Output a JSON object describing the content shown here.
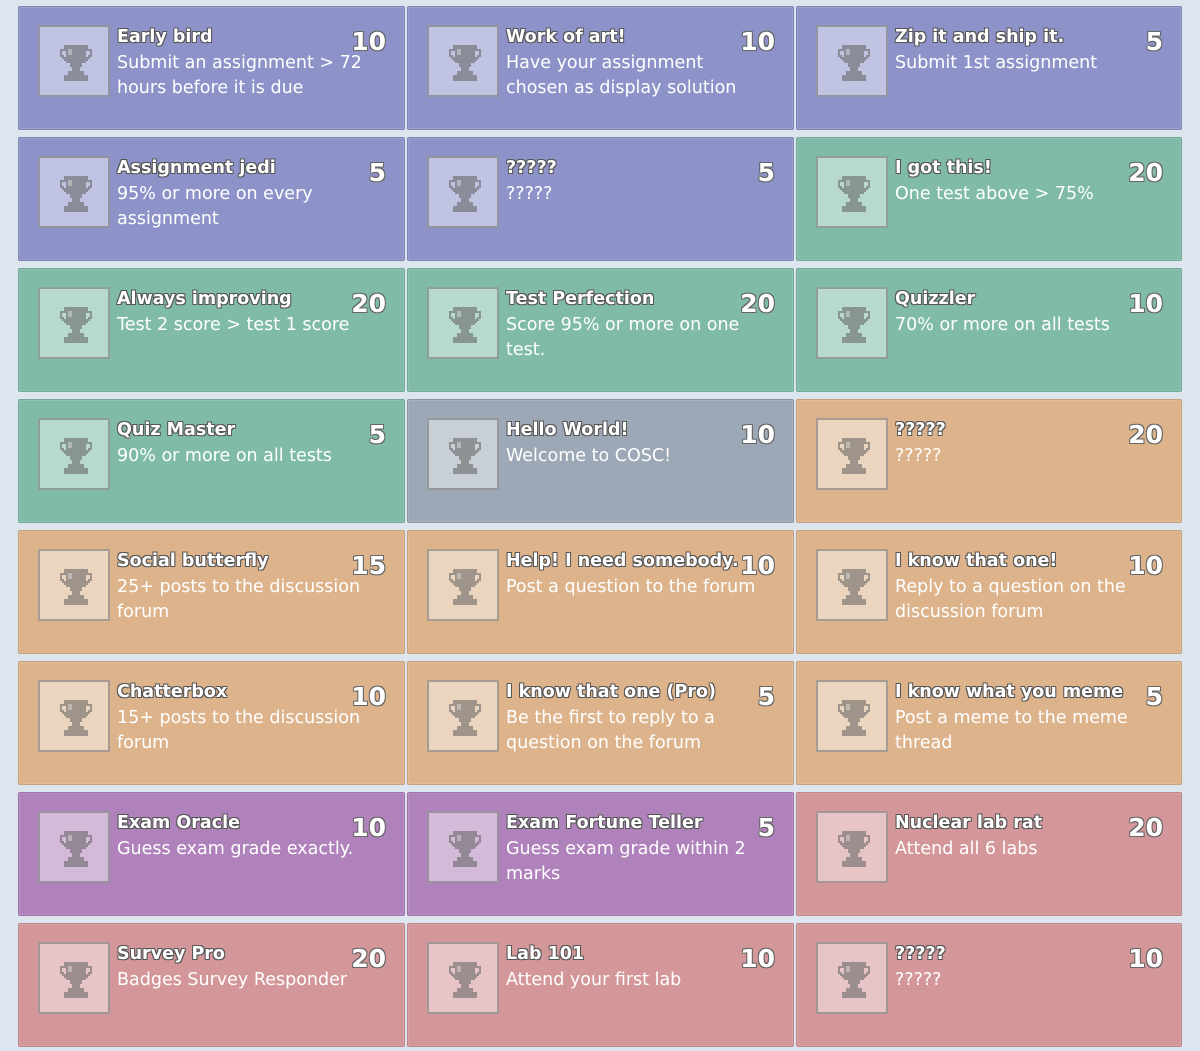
{
  "colors": {
    "assignment": "#8d93c8",
    "test": "#7fbba8",
    "welcome": "#9ca8b5",
    "forum": "#dcb38b",
    "exam": "#b082bb",
    "lab": "#d39699"
  },
  "trophy_icon": "trophy-icon",
  "badges": [
    {
      "title": "Early bird",
      "description": "Submit an assignment > 72 hours before it is due",
      "points": "10",
      "category": "assignment"
    },
    {
      "title": "Work of art!",
      "description": "Have your assignment chosen as display solution",
      "points": "10",
      "category": "assignment"
    },
    {
      "title": "Zip it and ship it.",
      "description": "Submit 1st assignment",
      "points": "5",
      "category": "assignment"
    },
    {
      "title": "Assignment jedi",
      "description": "95% or more on every assignment",
      "points": "5",
      "category": "assignment"
    },
    {
      "title": "?????",
      "description": "?????",
      "points": "5",
      "category": "assignment"
    },
    {
      "title": "I got this!",
      "description": "One test above > 75%",
      "points": "20",
      "category": "test"
    },
    {
      "title": "Always improving",
      "description": "Test 2 score > test 1 score",
      "points": "20",
      "category": "test"
    },
    {
      "title": "Test Perfection",
      "description": "Score 95% or more on one test.",
      "points": "20",
      "category": "test"
    },
    {
      "title": "Quizzler",
      "description": "70% or more on all tests",
      "points": "10",
      "category": "test"
    },
    {
      "title": "Quiz Master",
      "description": "90% or more on all tests",
      "points": "5",
      "category": "test"
    },
    {
      "title": "Hello World!",
      "description": "Welcome to COSC!",
      "points": "10",
      "category": "welcome"
    },
    {
      "title": "?????",
      "description": "?????",
      "points": "20",
      "category": "forum"
    },
    {
      "title": "Social butterfly",
      "description": "25+ posts to the discussion forum",
      "points": "15",
      "category": "forum"
    },
    {
      "title": "Help! I need somebody.",
      "description": "Post a question to the forum",
      "points": "10",
      "category": "forum"
    },
    {
      "title": "I know that one!",
      "description": "Reply to a question on the discussion forum",
      "points": "10",
      "category": "forum"
    },
    {
      "title": "Chatterbox",
      "description": "15+ posts to the discussion forum",
      "points": "10",
      "category": "forum"
    },
    {
      "title": "I know that one (Pro)",
      "description": "Be the first to reply to a question on the forum",
      "points": "5",
      "category": "forum"
    },
    {
      "title": "I know what you meme",
      "description": "Post a meme to the meme thread",
      "points": "5",
      "category": "forum"
    },
    {
      "title": "Exam Oracle",
      "description": "Guess exam grade exactly.",
      "points": "10",
      "category": "exam"
    },
    {
      "title": "Exam Fortune Teller",
      "description": "Guess exam grade within 2 marks",
      "points": "5",
      "category": "exam"
    },
    {
      "title": "Nuclear lab rat",
      "description": "Attend all 6 labs",
      "points": "20",
      "category": "lab"
    },
    {
      "title": "Survey Pro",
      "description": "Badges Survey Responder",
      "points": "20",
      "category": "lab"
    },
    {
      "title": "Lab 101",
      "description": "Attend your first lab",
      "points": "10",
      "category": "lab"
    },
    {
      "title": "?????",
      "description": "?????",
      "points": "10",
      "category": "lab"
    }
  ]
}
